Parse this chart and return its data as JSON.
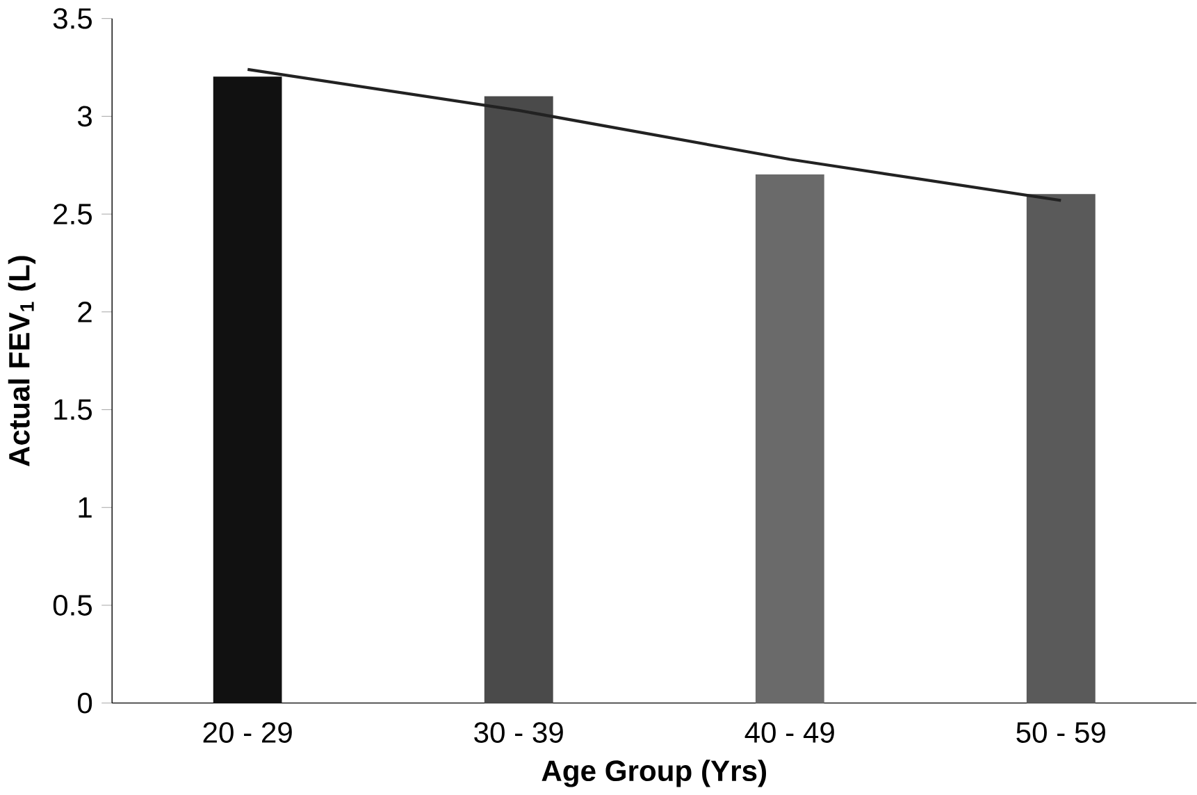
{
  "chart_data": {
    "type": "bar",
    "xlabel": "Age Group (Yrs)",
    "ylabel": "Actual FEV$_{1}$ (L)",
    "categories": [
      "20 - 29",
      "30 - 39",
      "40 - 49",
      "50 - 59"
    ],
    "series": [
      {
        "colors": [
          "#111111",
          "#4a4a4a",
          "#6a6a6a",
          "#5a5a5a"
        ],
        "values": [
          3.2,
          3.1,
          2.7,
          2.6
        ]
      },
      {
        "type": "line",
        "color": "#222222",
        "values": [
          3.24,
          3.03,
          2.78,
          2.57
        ]
      }
    ],
    "ylim": [
      0,
      3.5
    ],
    "yticks": [
      0,
      0.5,
      1,
      1.5,
      2,
      2.5,
      3,
      3.5
    ],
    "grid": false,
    "marker": "none",
    "line_style": "solid"
  }
}
